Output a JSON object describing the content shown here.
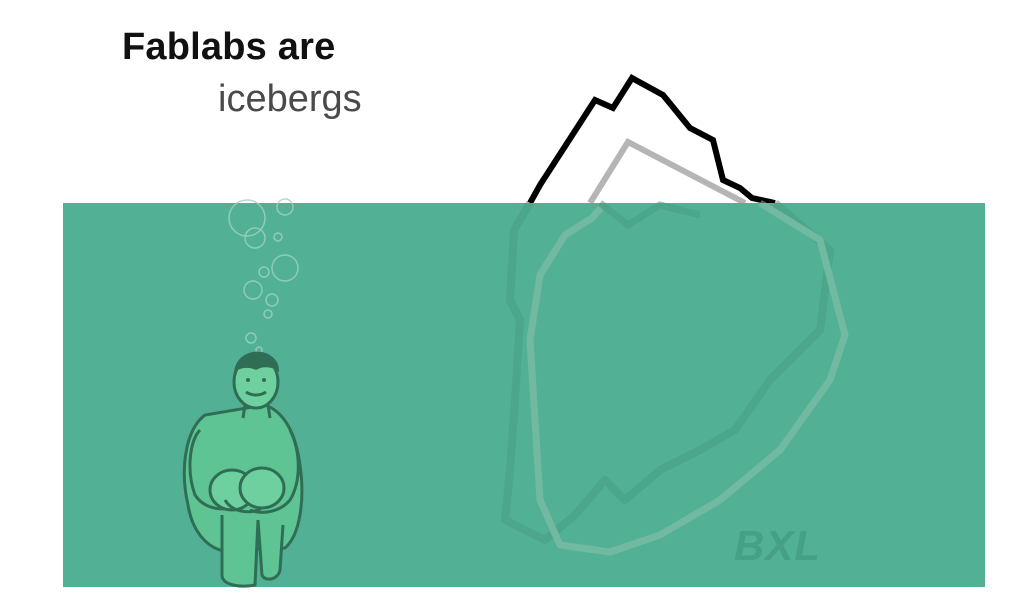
{
  "title": {
    "line1": "Fablabs are",
    "line2": "icebergs"
  },
  "watermark": "BXL",
  "colors": {
    "water": "#52b095",
    "iceberg_outline": "#000000",
    "iceberg_inner": "#b5b5b5",
    "figure": "#5fc493"
  },
  "icons": [
    "iceberg-illustration",
    "swimmer-illustration",
    "bubbles"
  ]
}
